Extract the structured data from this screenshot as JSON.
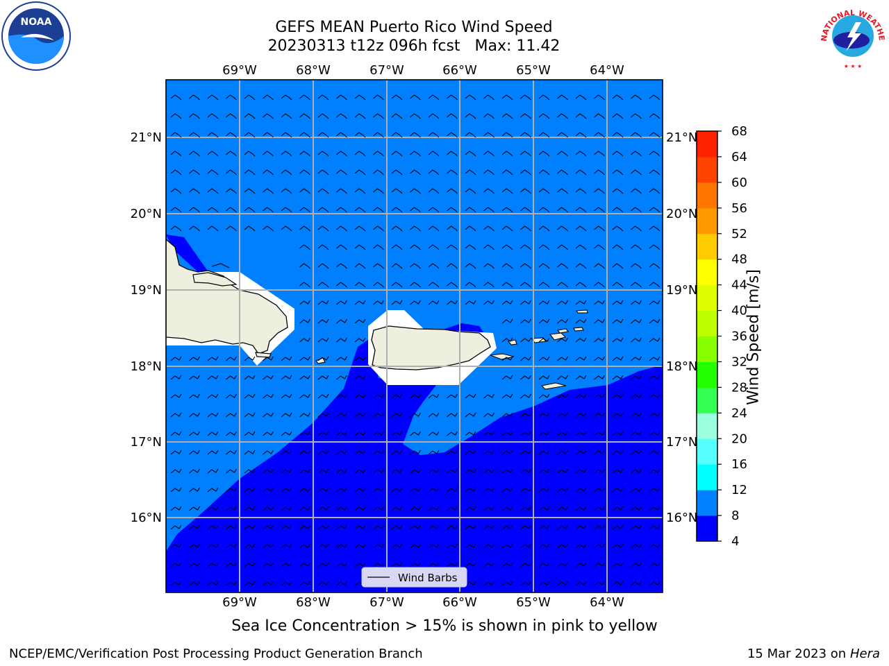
{
  "title_line1": "GEFS MEAN Puerto Rico Wind Speed",
  "title_line2_date": "20230313 t12z 096h fcst",
  "title_line2_max": "Max: 11.42",
  "subtitle": "Sea Ice Concentration > 15% is shown in pink to yellow",
  "footer_left": "NCEP/EMC/Verification Post Processing Product Generation Branch",
  "footer_right_date": "15 Mar 2023 on",
  "footer_right_host": "Hera",
  "legend_label": "Wind Barbs",
  "map": {
    "lon_ticks": [
      "69°W",
      "68°W",
      "67°W",
      "66°W",
      "65°W",
      "64°W"
    ],
    "lat_ticks": [
      "21°N",
      "20°N",
      "19°N",
      "18°N",
      "17°N",
      "16°N"
    ],
    "colors": {
      "ocean_light": "#0080ff",
      "ocean_dark": "#0000ff",
      "land": "#efefdf",
      "grid": "#b0b0b0"
    }
  },
  "colorbar": {
    "label": "Wind Speed [m/s]",
    "ticks": [
      "4",
      "8",
      "12",
      "16",
      "20",
      "24",
      "28",
      "32",
      "36",
      "40",
      "44",
      "48",
      "52",
      "56",
      "60",
      "64",
      "68"
    ],
    "colors": [
      "#0000ff",
      "#0080ff",
      "#00ffff",
      "#55ffff",
      "#99ffdd",
      "#33ff55",
      "#22ff00",
      "#88ff00",
      "#bbff00",
      "#ddff00",
      "#ffff00",
      "#ffcc00",
      "#ff9900",
      "#ff7700",
      "#ff4400",
      "#ff2200"
    ]
  },
  "logos": {
    "noaa_text": "NOAA",
    "nws_text": "NATIONAL WEATHER SERVICE"
  }
}
